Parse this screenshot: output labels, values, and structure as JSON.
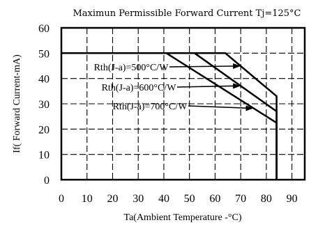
{
  "chart_data": {
    "type": "line",
    "title": "Maximun Permissible Forward Current Tj=125°C",
    "xlabel": "Ta(Ambient Temperature -°C)",
    "ylabel": "If( Forward Current-mA)",
    "xlim": [
      0,
      95
    ],
    "ylim": [
      0,
      60
    ],
    "x_ticks": [
      "0",
      "10",
      "20",
      "30",
      "40",
      "50",
      "60",
      "70",
      "80",
      "90"
    ],
    "y_ticks": [
      "0",
      "10",
      "20",
      "30",
      "40",
      "50",
      "60"
    ],
    "grid": "dashed",
    "series": [
      {
        "name": "Rth(J-a)=500°C/W",
        "x": [
          0,
          64,
          84,
          84
        ],
        "y": [
          50,
          50,
          33,
          0
        ]
      },
      {
        "name": "Rth(J-a)=600°C/W",
        "x": [
          0,
          52,
          84,
          84
        ],
        "y": [
          50,
          50,
          27,
          0
        ]
      },
      {
        "name": "Rth(J-a)=700°C/W",
        "x": [
          0,
          41,
          84,
          84
        ],
        "y": [
          50,
          50,
          22.5,
          0
        ]
      }
    ]
  }
}
